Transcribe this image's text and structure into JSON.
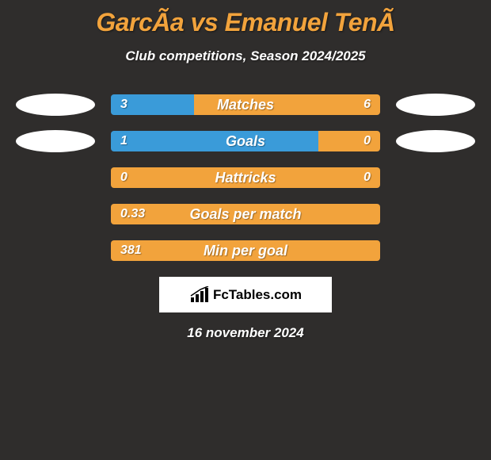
{
  "background_color": "#2f2d2c",
  "title": "GarcÃa vs Emanuel TenÃ",
  "title_color": "#f2a33c",
  "subtitle": "Club competitions, Season 2024/2025",
  "subtitle_color": "#ffffff",
  "text_color": "#ffffff",
  "oval_color": "#ffffff",
  "left_fill_color": "#3a9bd9",
  "right_fill_color": "#f2a33c",
  "full_fill_color": "#f2a33c",
  "brand_bg": "#ffffff",
  "brand_text": "FcTables.com",
  "brand_text_color": "#000000",
  "date": "16 november 2024",
  "rows": [
    {
      "label": "Matches",
      "left_value": "3",
      "right_value": "6",
      "left_pct": 31,
      "right_pct": 69,
      "has_ovals": true
    },
    {
      "label": "Goals",
      "left_value": "1",
      "right_value": "0",
      "left_pct": 77,
      "right_pct": 23,
      "has_ovals": true
    },
    {
      "label": "Hattricks",
      "left_value": "0",
      "right_value": "0",
      "left_pct": 0,
      "right_pct": 0,
      "full": true,
      "has_ovals": false
    },
    {
      "label": "Goals per match",
      "left_value": "0.33",
      "right_value": "",
      "left_pct": 0,
      "right_pct": 0,
      "full": true,
      "has_ovals": false
    },
    {
      "label": "Min per goal",
      "left_value": "381",
      "right_value": "",
      "left_pct": 0,
      "right_pct": 0,
      "full": true,
      "has_ovals": false
    }
  ]
}
